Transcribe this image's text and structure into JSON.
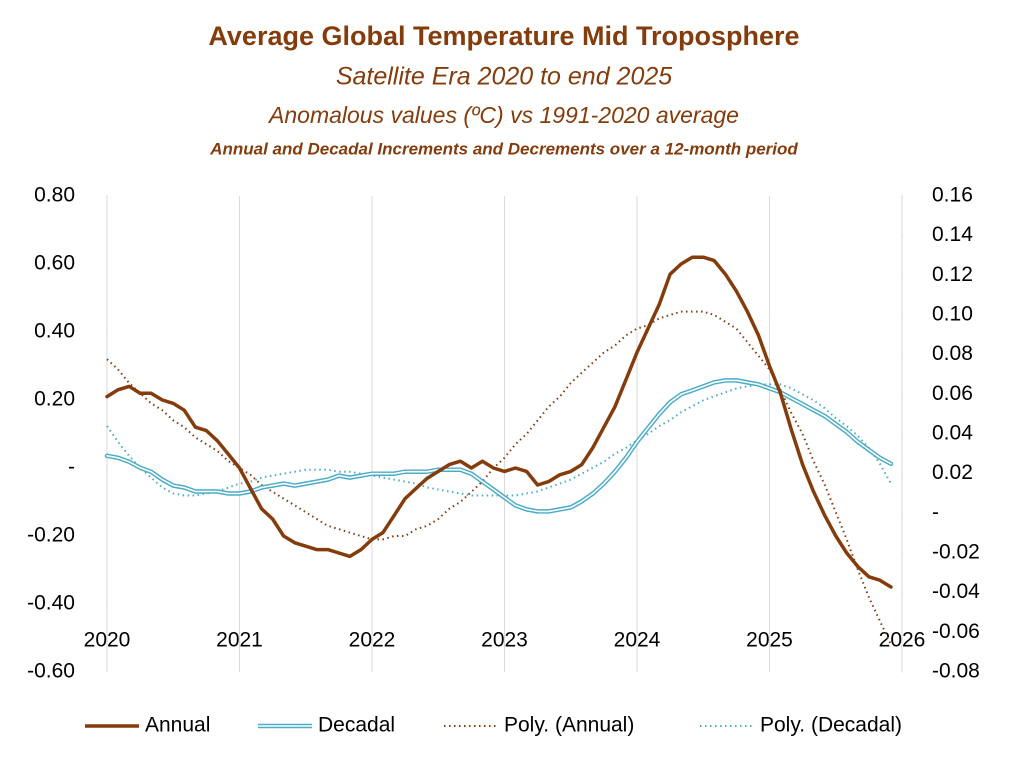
{
  "chart_data": {
    "type": "line",
    "title": "Average Global Temperature Mid Troposphere",
    "subtitle": "Satellite Era 2020 to end 2025",
    "subtitle2": "Anomalous values (ºC) vs 1991-2020 average",
    "subtitle3": "Annual and Decadal Increments and Decrements over a 12-month period",
    "x": [
      2020,
      2020.083,
      2020.167,
      2020.25,
      2020.333,
      2020.417,
      2020.5,
      2020.583,
      2020.667,
      2020.75,
      2020.833,
      2020.917,
      2021,
      2021.083,
      2021.167,
      2021.25,
      2021.333,
      2021.417,
      2021.5,
      2021.583,
      2021.667,
      2021.75,
      2021.833,
      2021.917,
      2022,
      2022.083,
      2022.167,
      2022.25,
      2022.333,
      2022.417,
      2022.5,
      2022.583,
      2022.667,
      2022.75,
      2022.833,
      2022.917,
      2023,
      2023.083,
      2023.167,
      2023.25,
      2023.333,
      2023.417,
      2023.5,
      2023.583,
      2023.667,
      2023.75,
      2023.833,
      2023.917,
      2024,
      2024.083,
      2024.167,
      2024.25,
      2024.333,
      2024.417,
      2024.5,
      2024.583,
      2024.667,
      2024.75,
      2024.833,
      2024.917,
      2025,
      2025.083,
      2025.167,
      2025.25,
      2025.333,
      2025.417,
      2025.5,
      2025.583,
      2025.667,
      2025.75,
      2025.833,
      2025.917
    ],
    "series": [
      {
        "name": "Annual",
        "color": "#843c0c",
        "style": "solid",
        "axis": "y",
        "values": [
          0.21,
          0.23,
          0.24,
          0.22,
          0.22,
          0.2,
          0.19,
          0.17,
          0.12,
          0.11,
          0.08,
          0.04,
          0.0,
          -0.06,
          -0.12,
          -0.15,
          -0.2,
          -0.22,
          -0.23,
          -0.24,
          -0.24,
          -0.25,
          -0.26,
          -0.24,
          -0.21,
          -0.19,
          -0.14,
          -0.09,
          -0.06,
          -0.03,
          -0.01,
          0.01,
          0.02,
          0.0,
          0.02,
          0.0,
          -0.01,
          0.0,
          -0.01,
          -0.05,
          -0.04,
          -0.02,
          -0.01,
          0.01,
          0.06,
          0.12,
          0.18,
          0.26,
          0.34,
          0.41,
          0.48,
          0.57,
          0.6,
          0.62,
          0.62,
          0.61,
          0.57,
          0.52,
          0.46,
          0.39,
          0.3,
          0.22,
          0.11,
          0.01,
          -0.07,
          -0.14,
          -0.2,
          -0.25,
          -0.29,
          -0.32,
          -0.33,
          -0.35
        ]
      },
      {
        "name": "Decadal",
        "color": "#4bacc6",
        "style": "double",
        "axis": "y2",
        "values": [
          0.029,
          0.028,
          0.026,
          0.023,
          0.021,
          0.017,
          0.014,
          0.013,
          0.011,
          0.011,
          0.011,
          0.01,
          0.01,
          0.011,
          0.013,
          0.014,
          0.015,
          0.014,
          0.015,
          0.016,
          0.017,
          0.019,
          0.018,
          0.019,
          0.02,
          0.02,
          0.02,
          0.021,
          0.021,
          0.021,
          0.022,
          0.022,
          0.022,
          0.02,
          0.016,
          0.012,
          0.008,
          0.004,
          0.002,
          0.001,
          0.001,
          0.002,
          0.003,
          0.006,
          0.01,
          0.015,
          0.021,
          0.028,
          0.036,
          0.043,
          0.05,
          0.056,
          0.06,
          0.062,
          0.064,
          0.066,
          0.067,
          0.067,
          0.066,
          0.065,
          0.063,
          0.061,
          0.058,
          0.055,
          0.052,
          0.049,
          0.045,
          0.041,
          0.036,
          0.032,
          0.028,
          0.025
        ]
      },
      {
        "name": "Poly. (Annual)",
        "color": "#843c0c",
        "style": "dotted",
        "axis": "y",
        "values": [
          0.32,
          0.29,
          0.25,
          0.22,
          0.19,
          0.17,
          0.14,
          0.12,
          0.09,
          0.07,
          0.05,
          0.02,
          0.0,
          -0.02,
          -0.05,
          -0.07,
          -0.09,
          -0.11,
          -0.13,
          -0.15,
          -0.17,
          -0.18,
          -0.19,
          -0.2,
          -0.21,
          -0.21,
          -0.2,
          -0.2,
          -0.18,
          -0.17,
          -0.15,
          -0.12,
          -0.1,
          -0.07,
          -0.04,
          0.0,
          0.03,
          0.07,
          0.1,
          0.14,
          0.18,
          0.21,
          0.25,
          0.28,
          0.31,
          0.34,
          0.36,
          0.39,
          0.41,
          0.42,
          0.44,
          0.45,
          0.46,
          0.46,
          0.46,
          0.45,
          0.43,
          0.41,
          0.37,
          0.33,
          0.29,
          0.23,
          0.16,
          0.1,
          0.02,
          -0.05,
          -0.13,
          -0.21,
          -0.3,
          -0.38,
          -0.45,
          -0.52
        ]
      },
      {
        "name": "Poly. (Decadal)",
        "color": "#4bacc6",
        "style": "dotted",
        "axis": "y2",
        "values": [
          0.044,
          0.036,
          0.029,
          0.023,
          0.018,
          0.013,
          0.01,
          0.009,
          0.009,
          0.01,
          0.011,
          0.013,
          0.015,
          0.016,
          0.018,
          0.019,
          0.02,
          0.021,
          0.022,
          0.022,
          0.022,
          0.021,
          0.021,
          0.02,
          0.019,
          0.018,
          0.017,
          0.016,
          0.015,
          0.013,
          0.012,
          0.011,
          0.01,
          0.009,
          0.009,
          0.009,
          0.009,
          0.009,
          0.01,
          0.011,
          0.013,
          0.015,
          0.017,
          0.02,
          0.023,
          0.026,
          0.03,
          0.033,
          0.037,
          0.04,
          0.044,
          0.047,
          0.051,
          0.054,
          0.057,
          0.059,
          0.061,
          0.063,
          0.064,
          0.065,
          0.065,
          0.065,
          0.063,
          0.06,
          0.057,
          0.053,
          0.048,
          0.044,
          0.039,
          0.033,
          0.025,
          0.015
        ]
      }
    ],
    "xlim": [
      2020,
      2026
    ],
    "xticks": [
      2020,
      2021,
      2022,
      2023,
      2024,
      2025,
      2026
    ],
    "ylim": [
      -0.6,
      0.8
    ],
    "yticks": [
      {
        "value": -0.6,
        "label": "-0.60"
      },
      {
        "value": -0.4,
        "label": "-0.40"
      },
      {
        "value": -0.2,
        "label": "-0.20"
      },
      {
        "value": 0,
        "label": "-"
      },
      {
        "value": 0.2,
        "label": "0.20"
      },
      {
        "value": 0.4,
        "label": "0.40"
      },
      {
        "value": 0.6,
        "label": "0.60"
      },
      {
        "value": 0.8,
        "label": "0.80"
      }
    ],
    "y2lim": [
      -0.08,
      0.16
    ],
    "y2ticks": [
      {
        "value": -0.08,
        "label": "-0.08"
      },
      {
        "value": -0.06,
        "label": "-0.06"
      },
      {
        "value": -0.04,
        "label": "-0.04"
      },
      {
        "value": -0.02,
        "label": "-0.02"
      },
      {
        "value": 0,
        "label": "-"
      },
      {
        "value": 0.02,
        "label": "0.02"
      },
      {
        "value": 0.04,
        "label": "0.04"
      },
      {
        "value": 0.06,
        "label": "0.06"
      },
      {
        "value": 0.08,
        "label": "0.08"
      },
      {
        "value": 0.1,
        "label": "0.10"
      },
      {
        "value": 0.12,
        "label": "0.12"
      },
      {
        "value": 0.14,
        "label": "0.14"
      },
      {
        "value": 0.16,
        "label": "0.16"
      }
    ],
    "grid": "x",
    "legend": "bottom"
  }
}
